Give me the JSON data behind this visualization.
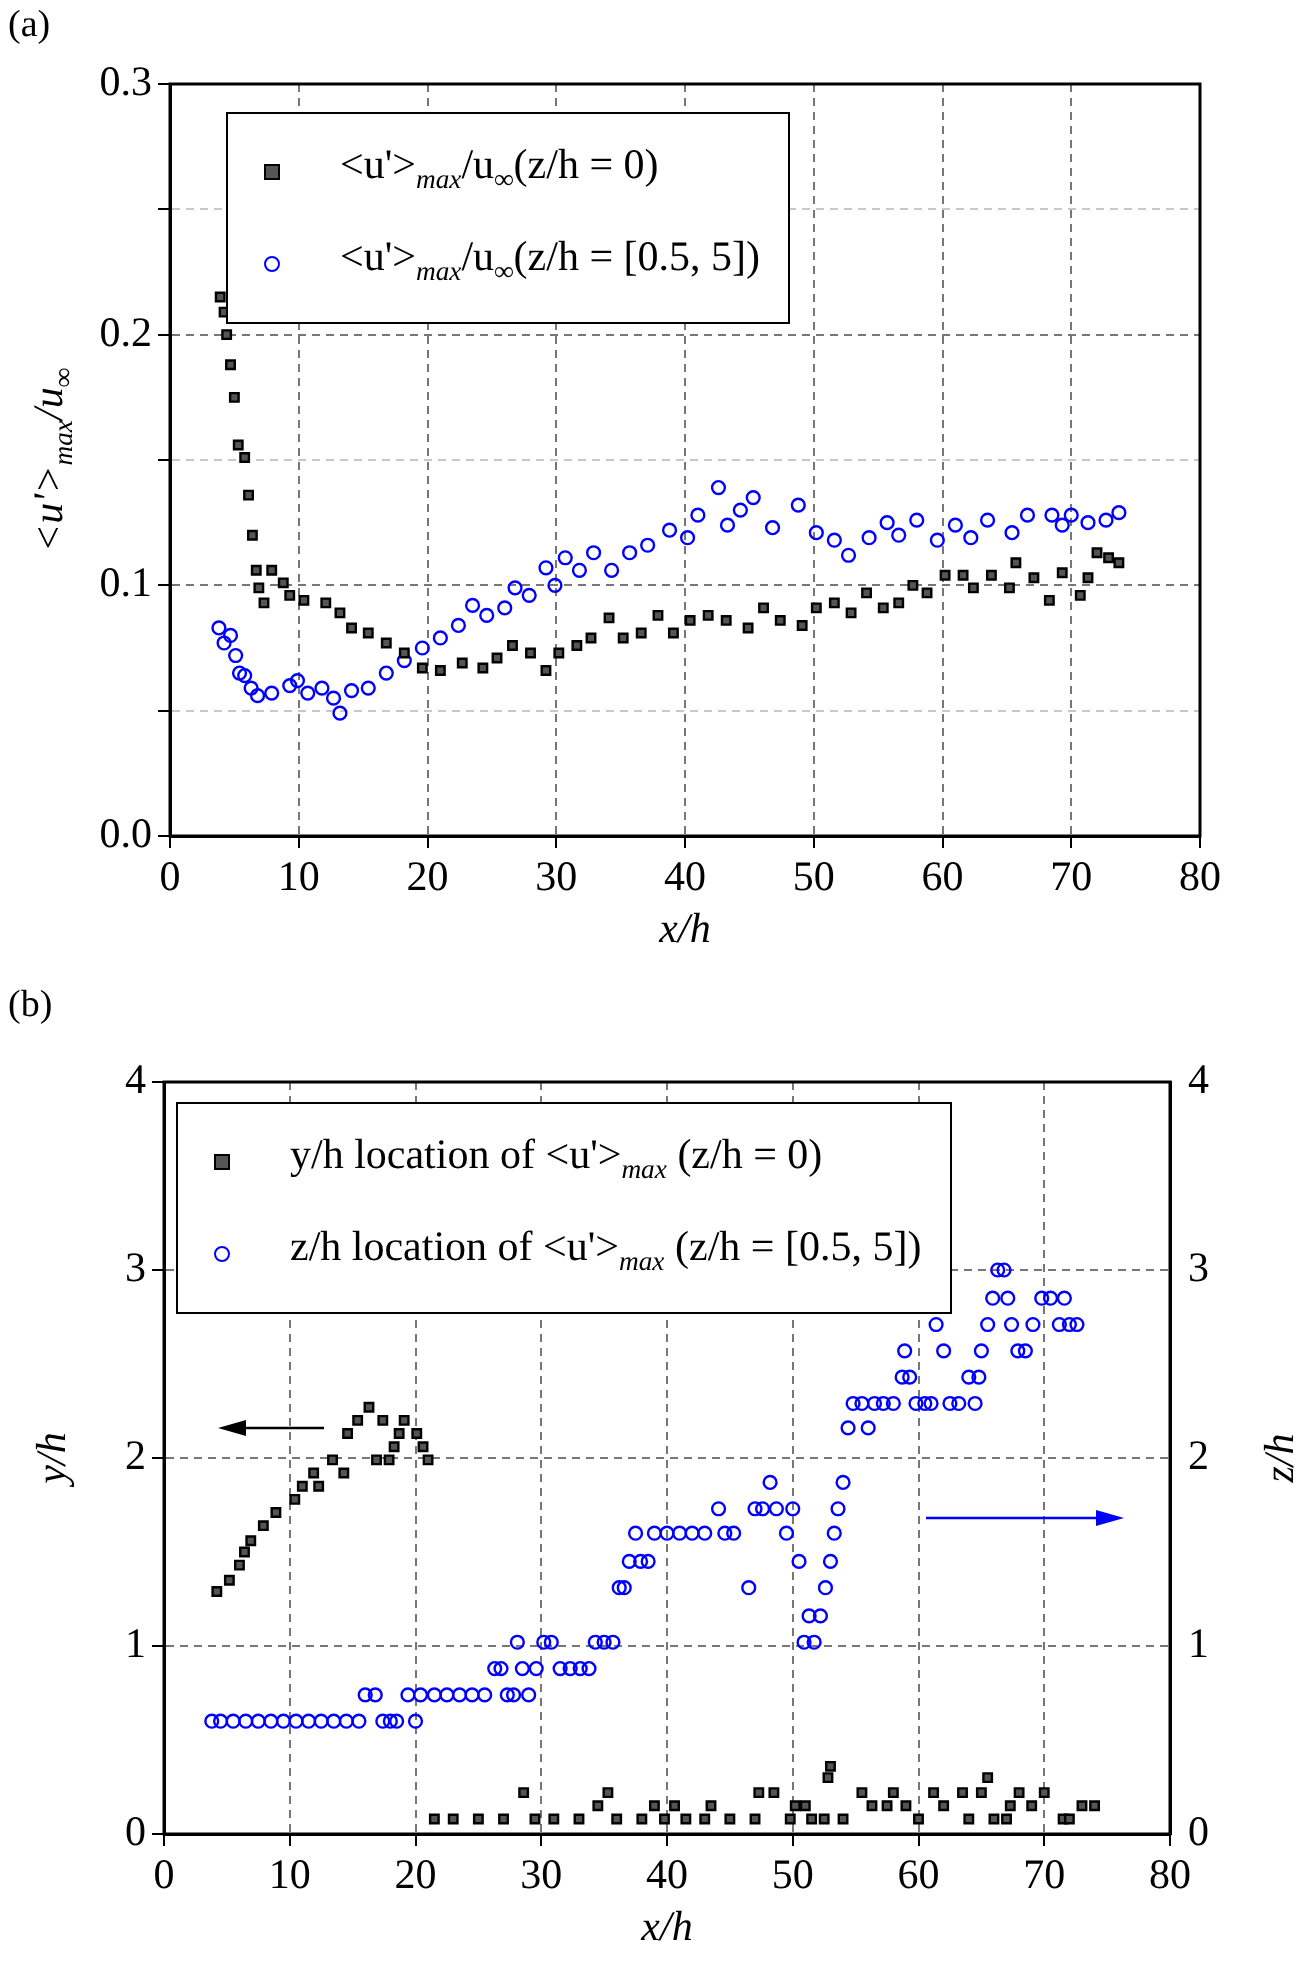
{
  "chart_data": [
    {
      "type": "scatter",
      "annotations": [
        "(a)"
      ],
      "xlabel": "x/h",
      "ylabel": "<u'>$_{max}$/u$_{∞}$",
      "xlim": [
        0,
        80
      ],
      "xticks": [
        0,
        10,
        20,
        30,
        40,
        50,
        60,
        70,
        80
      ],
      "ylim": [
        0,
        0.3
      ],
      "yticks": [
        {
          "value": 0,
          "label": "0.0"
        },
        {
          "value": 0.05,
          "label": null
        },
        {
          "value": 0.1,
          "label": "0.1"
        },
        {
          "value": 0.15,
          "label": null
        },
        {
          "value": 0.2,
          "label": "0.2"
        },
        {
          "value": 0.25,
          "label": null
        },
        {
          "value": 0.3,
          "label": "0.3"
        }
      ],
      "grid": true,
      "legend": "top left",
      "series": [
        {
          "name": "<u'>$_{max}$/u$_{∞}$(z/h = 0)",
          "color": "#000000",
          "marker": "square",
          "x": [
            3.9,
            4.2,
            4.4,
            4.7,
            5.0,
            5.3,
            5.8,
            6.1,
            6.4,
            6.7,
            6.9,
            7.3,
            7.9,
            8.8,
            9.3,
            10.4,
            12.1,
            13.2,
            14.1,
            15.4,
            16.8,
            18.2,
            19.6,
            21.0,
            22.7,
            24.3,
            25.4,
            26.6,
            28.0,
            29.2,
            30.2,
            31.6,
            32.7,
            34.1,
            35.2,
            36.6,
            37.9,
            39.1,
            40.4,
            41.8,
            43.2,
            44.9,
            46.1,
            47.4,
            49.1,
            50.2,
            51.6,
            52.9,
            54.1,
            55.4,
            56.6,
            57.7,
            58.8,
            60.2,
            61.6,
            62.4,
            63.8,
            65.2,
            65.7,
            67.1,
            68.3,
            69.3,
            70.7,
            71.3,
            72.0,
            72.9,
            73.7
          ],
          "values": [
            0.215,
            0.209,
            0.2,
            0.188,
            0.175,
            0.156,
            0.151,
            0.136,
            0.12,
            0.106,
            0.099,
            0.093,
            0.106,
            0.101,
            0.096,
            0.094,
            0.093,
            0.089,
            0.083,
            0.081,
            0.077,
            0.073,
            0.067,
            0.066,
            0.069,
            0.067,
            0.071,
            0.076,
            0.073,
            0.066,
            0.073,
            0.076,
            0.079,
            0.087,
            0.079,
            0.081,
            0.088,
            0.081,
            0.086,
            0.088,
            0.086,
            0.083,
            0.091,
            0.086,
            0.084,
            0.091,
            0.093,
            0.089,
            0.097,
            0.091,
            0.093,
            0.1,
            0.097,
            0.104,
            0.104,
            0.099,
            0.104,
            0.099,
            0.109,
            0.103,
            0.094,
            0.105,
            0.096,
            0.103,
            0.113,
            0.111,
            0.109
          ]
        },
        {
          "name": "<u'>$_{max}$/u$_{∞}$(z/h = [0.5, 5])",
          "color": "#0000ff",
          "marker": "circle",
          "x": [
            3.8,
            4.2,
            4.7,
            5.1,
            5.4,
            5.8,
            6.3,
            6.8,
            7.9,
            9.3,
            9.9,
            10.7,
            11.8,
            12.7,
            13.2,
            14.1,
            15.4,
            16.8,
            18.2,
            19.6,
            21.0,
            22.4,
            23.5,
            24.6,
            26.0,
            26.8,
            27.9,
            29.2,
            29.9,
            30.7,
            31.8,
            32.9,
            34.3,
            35.7,
            37.1,
            38.8,
            40.2,
            41.0,
            42.6,
            43.3,
            44.3,
            45.3,
            46.8,
            48.8,
            50.2,
            51.6,
            52.7,
            54.3,
            55.7,
            56.6,
            58.0,
            59.6,
            61.0,
            62.2,
            63.5,
            65.4,
            66.6,
            68.5,
            69.3,
            70.0,
            71.3,
            72.7,
            73.7
          ],
          "values": [
            0.083,
            0.077,
            0.08,
            0.072,
            0.065,
            0.064,
            0.059,
            0.056,
            0.057,
            0.06,
            0.062,
            0.057,
            0.059,
            0.055,
            0.049,
            0.058,
            0.059,
            0.065,
            0.07,
            0.075,
            0.079,
            0.084,
            0.092,
            0.088,
            0.091,
            0.099,
            0.096,
            0.107,
            0.1,
            0.111,
            0.106,
            0.113,
            0.106,
            0.113,
            0.116,
            0.122,
            0.119,
            0.128,
            0.139,
            0.124,
            0.13,
            0.135,
            0.123,
            0.132,
            0.121,
            0.118,
            0.112,
            0.119,
            0.125,
            0.12,
            0.126,
            0.118,
            0.124,
            0.119,
            0.126,
            0.121,
            0.128,
            0.128,
            0.124,
            0.128,
            0.125,
            0.126,
            0.129
          ]
        }
      ]
    },
    {
      "type": "scatter",
      "annotations": [
        "(b)"
      ],
      "xlabel": "x/h",
      "ylabel": "y/h",
      "y2label": "z/h",
      "xlim": [
        0,
        80
      ],
      "xticks": [
        0,
        10,
        20,
        30,
        40,
        50,
        60,
        70,
        80
      ],
      "ylim": [
        0,
        4
      ],
      "yticks": [
        0,
        1,
        2,
        3,
        4
      ],
      "y2lim": [
        0,
        4
      ],
      "y2ticks": [
        0,
        1,
        2,
        3,
        4
      ],
      "grid": true,
      "legend": "top left",
      "series": [
        {
          "name": "y/h location of <u'>$_{max}$ (z/h = 0)",
          "color": "#000000",
          "marker": "square",
          "x": [
            4.2,
            5.2,
            6.0,
            6.4,
            6.9,
            7.9,
            8.9,
            10.4,
            11.0,
            11.9,
            12.3,
            13.4,
            14.3,
            14.6,
            15.4,
            16.3,
            16.9,
            17.4,
            17.9,
            18.3,
            18.7,
            19.1,
            20.1,
            20.6,
            21.0,
            21.5,
            23.0,
            25.0,
            27.0,
            28.6,
            29.5,
            31.0,
            33.0,
            34.5,
            35.3,
            36.0,
            38.0,
            39.0,
            39.8,
            40.6,
            41.5,
            43.0,
            43.5,
            45.0,
            47.0,
            47.3,
            48.5,
            49.8,
            50.2,
            51.0,
            51.5,
            52.5,
            52.8,
            53.0,
            54.0,
            55.5,
            56.3,
            57.5,
            58.0,
            59.0,
            60.0,
            61.2,
            62.0,
            63.5,
            64.0,
            65.0,
            65.5,
            66.0,
            67.0,
            67.3,
            68.0,
            69.0,
            70.0,
            71.5,
            72.0,
            73.0,
            74.0
          ],
          "values": [
            1.29,
            1.35,
            1.43,
            1.5,
            1.56,
            1.64,
            1.71,
            1.78,
            1.85,
            1.92,
            1.85,
            1.99,
            1.92,
            2.13,
            2.2,
            2.27,
            1.99,
            2.2,
            1.99,
            2.06,
            2.13,
            2.2,
            2.13,
            2.06,
            1.99,
            0.08,
            0.08,
            0.08,
            0.08,
            0.22,
            0.08,
            0.08,
            0.08,
            0.15,
            0.22,
            0.08,
            0.08,
            0.15,
            0.08,
            0.15,
            0.08,
            0.08,
            0.15,
            0.08,
            0.08,
            0.22,
            0.22,
            0.08,
            0.15,
            0.15,
            0.08,
            0.08,
            0.3,
            0.36,
            0.08,
            0.22,
            0.15,
            0.15,
            0.22,
            0.15,
            0.08,
            0.22,
            0.15,
            0.22,
            0.08,
            0.22,
            0.3,
            0.08,
            0.08,
            0.15,
            0.22,
            0.15,
            0.22,
            0.08,
            0.08,
            0.15,
            0.15
          ]
        },
        {
          "name": "z/h location of <u'>$_{max}$ (z/h = [0.5, 5])",
          "color": "#0000ff",
          "marker": "circle",
          "axis": "y2",
          "x": [
            3.8,
            4.5,
            5.5,
            6.5,
            7.5,
            8.5,
            9.5,
            10.5,
            11.5,
            12.5,
            13.5,
            14.5,
            15.5,
            16.0,
            16.8,
            17.4,
            18.0,
            18.5,
            19.4,
            20.0,
            20.4,
            21.5,
            22.5,
            23.5,
            24.5,
            25.5,
            26.3,
            26.8,
            27.3,
            27.8,
            28.1,
            28.5,
            29.0,
            29.6,
            30.2,
            30.8,
            31.5,
            32.3,
            33.1,
            33.8,
            34.3,
            35.0,
            35.7,
            36.2,
            36.6,
            37.0,
            37.5,
            37.9,
            38.5,
            39.0,
            40.0,
            41.0,
            42.0,
            43.0,
            44.1,
            44.6,
            45.3,
            46.5,
            47.0,
            47.6,
            48.2,
            48.7,
            49.5,
            50.0,
            50.5,
            50.9,
            51.3,
            51.7,
            52.2,
            52.6,
            53.0,
            53.3,
            53.6,
            54.0,
            54.4,
            54.8,
            55.5,
            56.0,
            56.5,
            57.2,
            58.0,
            58.7,
            58.9,
            59.3,
            59.8,
            60.5,
            61.0,
            61.4,
            62.0,
            62.5,
            63.2,
            64.0,
            64.5,
            64.8,
            65.0,
            65.5,
            65.9,
            66.3,
            66.8,
            67.1,
            67.4,
            67.9,
            68.5,
            69.1,
            69.8,
            70.5,
            71.2,
            71.6,
            72.0,
            72.6
          ],
          "values": [
            0.6,
            0.6,
            0.6,
            0.6,
            0.6,
            0.6,
            0.6,
            0.6,
            0.6,
            0.6,
            0.6,
            0.6,
            0.6,
            0.74,
            0.74,
            0.6,
            0.6,
            0.6,
            0.74,
            0.6,
            0.74,
            0.74,
            0.74,
            0.74,
            0.74,
            0.74,
            0.88,
            0.88,
            0.74,
            0.74,
            1.02,
            0.88,
            0.74,
            0.88,
            1.02,
            1.02,
            0.88,
            0.88,
            0.88,
            0.88,
            1.02,
            1.02,
            1.02,
            1.31,
            1.31,
            1.45,
            1.6,
            1.45,
            1.45,
            1.6,
            1.6,
            1.6,
            1.6,
            1.6,
            1.73,
            1.6,
            1.6,
            1.31,
            1.73,
            1.73,
            1.87,
            1.73,
            1.6,
            1.73,
            1.45,
            1.02,
            1.16,
            1.02,
            1.16,
            1.31,
            1.45,
            1.6,
            1.73,
            1.87,
            2.16,
            2.29,
            2.29,
            2.16,
            2.29,
            2.29,
            2.29,
            2.43,
            2.57,
            2.43,
            2.29,
            2.29,
            2.29,
            2.71,
            2.57,
            2.29,
            2.29,
            2.43,
            2.29,
            2.43,
            2.57,
            2.71,
            2.85,
            3.0,
            3.0,
            2.85,
            2.71,
            2.57,
            2.57,
            2.71,
            2.85,
            2.85,
            2.71,
            2.85,
            2.71,
            2.71
          ]
        }
      ]
    }
  ]
}
